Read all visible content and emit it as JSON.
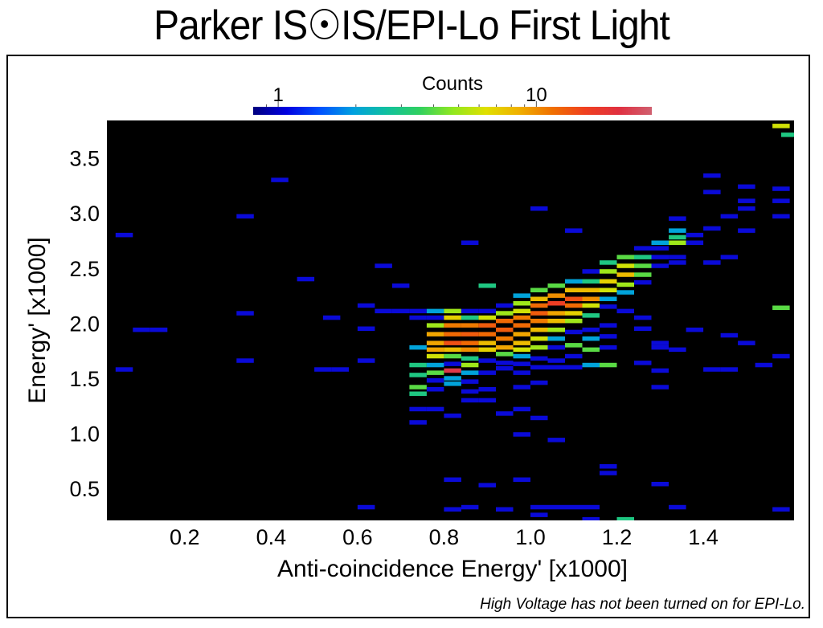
{
  "title": "Parker IS☉IS/EPI-Lo First Light",
  "note": "High Voltage has not been turned on for EPI-Lo.",
  "chart_data": {
    "type": "heatmap",
    "title": "Parker IS☉IS/EPI-Lo First Light",
    "xlabel": "Anti-coincidence Energy' [x1000]",
    "ylabel": "Energy' [x1000]",
    "xlim": [
      0.02,
      1.61
    ],
    "ylim": [
      0.21,
      3.84
    ],
    "x_ticks": [
      0.2,
      0.4,
      0.6,
      0.8,
      1.0,
      1.2,
      1.4
    ],
    "x_tick_labels": [
      "0.2",
      "0.4",
      "0.6",
      "0.8",
      "1.0",
      "1.2",
      "1.4"
    ],
    "y_ticks": [
      0.5,
      1.0,
      1.5,
      2.0,
      2.5,
      3.0,
      3.5
    ],
    "y_tick_labels": [
      "0.5",
      "1.0",
      "1.5",
      "2.0",
      "2.5",
      "3.0",
      "3.5"
    ],
    "bin_width": 0.04,
    "bin_height": 0.04,
    "background": "#000000",
    "colorbar": {
      "label": "Counts",
      "scale": "log",
      "range": [
        0.8,
        28
      ],
      "tick_labels": [
        "1",
        "10"
      ],
      "ticks": [
        1,
        10
      ],
      "minor_ticks": [
        0.9,
        2,
        3,
        4,
        5,
        6,
        7,
        8,
        9
      ],
      "colors": [
        "#00007f",
        "#0000e0",
        "#0050ff",
        "#00a0e0",
        "#10c0a0",
        "#30d060",
        "#90e820",
        "#e0e000",
        "#f0b000",
        "#f07000",
        "#f04020",
        "#e03040",
        "#d06070"
      ]
    },
    "cells": [
      [
        0.06,
        2.8,
        1
      ],
      [
        0.1,
        1.94,
        1
      ],
      [
        0.14,
        1.94,
        1
      ],
      [
        0.06,
        1.58,
        1
      ],
      [
        0.34,
        2.97,
        1
      ],
      [
        0.34,
        2.09,
        1
      ],
      [
        0.34,
        1.66,
        1
      ],
      [
        0.42,
        3.3,
        1
      ],
      [
        0.48,
        2.4,
        1
      ],
      [
        0.54,
        2.05,
        1
      ],
      [
        0.52,
        1.58,
        1
      ],
      [
        0.56,
        1.58,
        1
      ],
      [
        0.62,
        2.16,
        1
      ],
      [
        0.62,
        1.95,
        1
      ],
      [
        0.62,
        1.66,
        1
      ],
      [
        0.62,
        0.33,
        1
      ],
      [
        0.66,
        2.52,
        1
      ],
      [
        0.66,
        2.11,
        1
      ],
      [
        0.7,
        2.11,
        1
      ],
      [
        0.7,
        2.34,
        1
      ],
      [
        0.74,
        2.11,
        1
      ],
      [
        0.74,
        2.05,
        1
      ],
      [
        0.74,
        1.78,
        2
      ],
      [
        0.74,
        1.62,
        3
      ],
      [
        0.74,
        1.53,
        3
      ],
      [
        0.74,
        1.42,
        4
      ],
      [
        0.74,
        1.36,
        3
      ],
      [
        0.74,
        1.22,
        1
      ],
      [
        0.74,
        1.1,
        1
      ],
      [
        0.78,
        2.11,
        2
      ],
      [
        0.78,
        2.05,
        1
      ],
      [
        0.78,
        1.98,
        5
      ],
      [
        0.78,
        1.9,
        9
      ],
      [
        0.78,
        1.82,
        9
      ],
      [
        0.78,
        1.76,
        9
      ],
      [
        0.78,
        1.7,
        6
      ],
      [
        0.78,
        1.62,
        2
      ],
      [
        0.78,
        1.55,
        4
      ],
      [
        0.78,
        1.48,
        1
      ],
      [
        0.78,
        1.4,
        1
      ],
      [
        0.78,
        1.22,
        1
      ],
      [
        0.82,
        2.11,
        5
      ],
      [
        0.82,
        2.05,
        7
      ],
      [
        0.82,
        1.98,
        11
      ],
      [
        0.82,
        1.9,
        12
      ],
      [
        0.82,
        1.82,
        14
      ],
      [
        0.82,
        1.76,
        8
      ],
      [
        0.82,
        1.7,
        4
      ],
      [
        0.82,
        1.63,
        1
      ],
      [
        0.82,
        1.57,
        22
      ],
      [
        0.82,
        1.5,
        2
      ],
      [
        0.82,
        1.45,
        2
      ],
      [
        0.82,
        1.16,
        1
      ],
      [
        0.82,
        0.58,
        1
      ],
      [
        0.82,
        0.31,
        1
      ],
      [
        0.86,
        2.73,
        1
      ],
      [
        0.86,
        2.11,
        1
      ],
      [
        0.86,
        2.05,
        3
      ],
      [
        0.86,
        1.98,
        11
      ],
      [
        0.86,
        1.9,
        13
      ],
      [
        0.86,
        1.82,
        12
      ],
      [
        0.86,
        1.76,
        10
      ],
      [
        0.86,
        1.68,
        3
      ],
      [
        0.86,
        1.62,
        5
      ],
      [
        0.86,
        1.55,
        2
      ],
      [
        0.86,
        1.47,
        1
      ],
      [
        0.86,
        1.38,
        1
      ],
      [
        0.86,
        1.3,
        1
      ],
      [
        0.86,
        0.33,
        1
      ],
      [
        0.9,
        2.34,
        3
      ],
      [
        0.9,
        2.11,
        1
      ],
      [
        0.9,
        2.05,
        6
      ],
      [
        0.9,
        1.98,
        13
      ],
      [
        0.9,
        1.9,
        12
      ],
      [
        0.9,
        1.82,
        8
      ],
      [
        0.9,
        1.76,
        7
      ],
      [
        0.9,
        1.66,
        1
      ],
      [
        0.9,
        1.55,
        1
      ],
      [
        0.9,
        1.4,
        1
      ],
      [
        0.9,
        1.3,
        1
      ],
      [
        0.9,
        0.53,
        1
      ],
      [
        0.94,
        2.16,
        1
      ],
      [
        0.94,
        2.09,
        5
      ],
      [
        0.94,
        2.02,
        12
      ],
      [
        0.94,
        1.94,
        13
      ],
      [
        0.94,
        1.86,
        11
      ],
      [
        0.94,
        1.78,
        9
      ],
      [
        0.94,
        1.72,
        4
      ],
      [
        0.94,
        1.64,
        1
      ],
      [
        0.94,
        1.59,
        1
      ],
      [
        0.94,
        1.18,
        1
      ],
      [
        0.94,
        0.31,
        1
      ],
      [
        0.98,
        2.25,
        2
      ],
      [
        0.98,
        2.18,
        5
      ],
      [
        0.98,
        2.11,
        6
      ],
      [
        0.98,
        2.05,
        11
      ],
      [
        0.98,
        1.98,
        12
      ],
      [
        0.98,
        1.9,
        9
      ],
      [
        0.98,
        1.82,
        8
      ],
      [
        0.98,
        1.76,
        6
      ],
      [
        0.98,
        1.7,
        2
      ],
      [
        0.98,
        1.63,
        1
      ],
      [
        0.98,
        1.55,
        1
      ],
      [
        0.98,
        1.42,
        1
      ],
      [
        0.98,
        1.22,
        1
      ],
      [
        0.98,
        0.99,
        1
      ],
      [
        0.98,
        0.58,
        1
      ],
      [
        1.02,
        3.04,
        1
      ],
      [
        1.02,
        2.3,
        4
      ],
      [
        1.02,
        2.22,
        8
      ],
      [
        1.02,
        2.16,
        12
      ],
      [
        1.02,
        2.09,
        13
      ],
      [
        1.02,
        2.02,
        11
      ],
      [
        1.02,
        1.94,
        8
      ],
      [
        1.02,
        1.86,
        6
      ],
      [
        1.02,
        1.78,
        5
      ],
      [
        1.02,
        1.68,
        1
      ],
      [
        1.02,
        1.6,
        1
      ],
      [
        1.02,
        1.46,
        1
      ],
      [
        1.02,
        1.14,
        1
      ],
      [
        1.02,
        0.33,
        1
      ],
      [
        1.02,
        0.26,
        1
      ],
      [
        1.06,
        2.34,
        4
      ],
      [
        1.06,
        2.25,
        10
      ],
      [
        1.06,
        2.18,
        16
      ],
      [
        1.06,
        2.09,
        9
      ],
      [
        1.06,
        2.02,
        8
      ],
      [
        1.06,
        1.94,
        5
      ],
      [
        1.06,
        1.86,
        2
      ],
      [
        1.06,
        1.78,
        1
      ],
      [
        1.06,
        1.66,
        1
      ],
      [
        1.06,
        1.6,
        1
      ],
      [
        1.06,
        0.94,
        1
      ],
      [
        1.06,
        0.33,
        1
      ],
      [
        1.1,
        2.84,
        1
      ],
      [
        1.1,
        2.38,
        2
      ],
      [
        1.1,
        2.3,
        8
      ],
      [
        1.1,
        2.22,
        14
      ],
      [
        1.1,
        2.16,
        12
      ],
      [
        1.1,
        2.09,
        7
      ],
      [
        1.1,
        2.02,
        5
      ],
      [
        1.1,
        1.92,
        1
      ],
      [
        1.1,
        1.8,
        4
      ],
      [
        1.1,
        1.7,
        1
      ],
      [
        1.1,
        1.6,
        1
      ],
      [
        1.1,
        0.33,
        1
      ],
      [
        1.14,
        2.47,
        1
      ],
      [
        1.14,
        2.38,
        3
      ],
      [
        1.14,
        2.3,
        8
      ],
      [
        1.14,
        2.22,
        10
      ],
      [
        1.14,
        2.16,
        6
      ],
      [
        1.14,
        2.07,
        3
      ],
      [
        1.14,
        1.94,
        1
      ],
      [
        1.14,
        1.86,
        2
      ],
      [
        1.14,
        1.76,
        4
      ],
      [
        1.14,
        1.62,
        2
      ],
      [
        1.14,
        0.33,
        1
      ],
      [
        1.14,
        0.22,
        1
      ],
      [
        1.18,
        2.55,
        3
      ],
      [
        1.18,
        2.47,
        5
      ],
      [
        1.18,
        2.38,
        7
      ],
      [
        1.18,
        2.3,
        6
      ],
      [
        1.18,
        2.22,
        2
      ],
      [
        1.18,
        2.15,
        1
      ],
      [
        1.18,
        1.98,
        1
      ],
      [
        1.18,
        1.88,
        1
      ],
      [
        1.18,
        1.78,
        1
      ],
      [
        1.18,
        1.62,
        4
      ],
      [
        1.18,
        0.7,
        1
      ],
      [
        1.18,
        0.64,
        1
      ],
      [
        1.22,
        2.6,
        4
      ],
      [
        1.22,
        2.52,
        6
      ],
      [
        1.22,
        2.44,
        8
      ],
      [
        1.22,
        2.35,
        5
      ],
      [
        1.22,
        2.28,
        2
      ],
      [
        1.22,
        2.11,
        1
      ],
      [
        1.22,
        0.22,
        3
      ],
      [
        1.26,
        2.68,
        1
      ],
      [
        1.26,
        2.6,
        3
      ],
      [
        1.26,
        2.52,
        4
      ],
      [
        1.26,
        2.44,
        4
      ],
      [
        1.26,
        2.37,
        1
      ],
      [
        1.26,
        2.05,
        1
      ],
      [
        1.26,
        1.95,
        1
      ],
      [
        1.26,
        1.64,
        1
      ],
      [
        1.3,
        2.73,
        2
      ],
      [
        1.3,
        2.68,
        1
      ],
      [
        1.3,
        2.6,
        1
      ],
      [
        1.3,
        2.52,
        1
      ],
      [
        1.3,
        1.82,
        1
      ],
      [
        1.3,
        1.78,
        1
      ],
      [
        1.3,
        1.57,
        1
      ],
      [
        1.3,
        1.42,
        1
      ],
      [
        1.3,
        0.54,
        1
      ],
      [
        1.34,
        2.95,
        1
      ],
      [
        1.34,
        2.84,
        2
      ],
      [
        1.34,
        2.78,
        3
      ],
      [
        1.34,
        2.73,
        5
      ],
      [
        1.34,
        2.6,
        1
      ],
      [
        1.34,
        2.55,
        1
      ],
      [
        1.34,
        1.76,
        1
      ],
      [
        1.34,
        0.33,
        1
      ],
      [
        1.38,
        2.8,
        1
      ],
      [
        1.38,
        2.73,
        1
      ],
      [
        1.38,
        1.94,
        1
      ],
      [
        1.42,
        3.34,
        1
      ],
      [
        1.42,
        3.19,
        1
      ],
      [
        1.42,
        2.86,
        1
      ],
      [
        1.42,
        2.55,
        1
      ],
      [
        1.42,
        1.58,
        1
      ],
      [
        1.46,
        2.97,
        1
      ],
      [
        1.46,
        2.6,
        1
      ],
      [
        1.46,
        1.89,
        1
      ],
      [
        1.46,
        1.58,
        1
      ],
      [
        1.5,
        3.24,
        1
      ],
      [
        1.5,
        3.11,
        1
      ],
      [
        1.5,
        3.04,
        1
      ],
      [
        1.5,
        2.84,
        1
      ],
      [
        1.5,
        1.82,
        1
      ],
      [
        1.54,
        1.62,
        1
      ],
      [
        1.58,
        3.79,
        6
      ],
      [
        1.58,
        3.22,
        1
      ],
      [
        1.58,
        3.11,
        1
      ],
      [
        1.58,
        2.97,
        1
      ],
      [
        1.58,
        2.14,
        4
      ],
      [
        1.58,
        1.7,
        1
      ],
      [
        1.58,
        0.31,
        1
      ],
      [
        1.6,
        3.71,
        3
      ]
    ]
  }
}
